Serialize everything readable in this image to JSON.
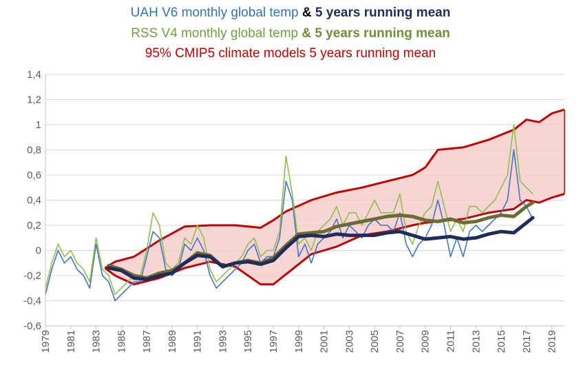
{
  "titles": {
    "uah": {
      "text_a": "UAH V6 monthly global temp",
      "amp": " & ",
      "text_b": " 5 years running mean",
      "color_a": "#2E75B6",
      "color_amp": "#000000",
      "color_b": "#1F2D5A"
    },
    "rss": {
      "text_a": "RSS V4 monthly global temp",
      "text_b": " & 5 years running mean",
      "color_a": "#70A044",
      "color_b": "#6F8F3A"
    },
    "cmip": {
      "text": "95% CMIP5 climate models 5 years running mean",
      "color": "#C00000"
    }
  },
  "chart_data": {
    "type": "line",
    "x_range": [
      1979,
      2020
    ],
    "ylim": [
      -0.6,
      1.4
    ],
    "y_ticks": [
      "-0,6",
      "-0,4",
      "-0,2",
      "0",
      "0,2",
      "0,4",
      "0,6",
      "0,8",
      "1",
      "1,2",
      "1,4"
    ],
    "y_tick_values": [
      -0.6,
      -0.4,
      -0.2,
      0,
      0.2,
      0.4,
      0.6,
      0.8,
      1.0,
      1.2,
      1.4
    ],
    "x_ticks": [
      "1979",
      "1981",
      "1983",
      "1985",
      "1987",
      "1989",
      "1991",
      "1993",
      "1995",
      "1997",
      "1999",
      "2001",
      "2003",
      "2005",
      "2007",
      "2009",
      "2011",
      "2013",
      "2015",
      "2017",
      "2019"
    ],
    "x_tick_values": [
      1979,
      1981,
      1983,
      1985,
      1987,
      1989,
      1991,
      1993,
      1995,
      1997,
      1999,
      2001,
      2003,
      2005,
      2007,
      2009,
      2011,
      2013,
      2015,
      2017,
      2019
    ],
    "grid": "horizontal",
    "colors": {
      "uah": "#4472C4",
      "uah_mean": "#1F2D5A",
      "rss": "#8DBF4B",
      "rss_mean": "#6B6B34",
      "cmip_line": "#C00000",
      "cmip_fill": "#F4C7C7"
    },
    "series": [
      {
        "name": "UAH V6 monthly global temp",
        "key": "uah",
        "x": [
          1979.0,
          1979.5,
          1980.0,
          1980.5,
          1981.0,
          1981.5,
          1982.0,
          1982.5,
          1983.0,
          1983.5,
          1984.0,
          1984.5,
          1985.0,
          1985.5,
          1986.0,
          1986.5,
          1987.0,
          1987.5,
          1988.0,
          1988.5,
          1989.0,
          1989.5,
          1990.0,
          1990.5,
          1991.0,
          1991.5,
          1992.0,
          1992.5,
          1993.0,
          1993.5,
          1994.0,
          1994.5,
          1995.0,
          1995.5,
          1996.0,
          1996.5,
          1997.0,
          1997.5,
          1998.0,
          1998.5,
          1999.0,
          1999.5,
          2000.0,
          2000.5,
          2001.0,
          2001.5,
          2002.0,
          2002.5,
          2003.0,
          2003.5,
          2004.0,
          2004.5,
          2005.0,
          2005.5,
          2006.0,
          2006.5,
          2007.0,
          2007.5,
          2008.0,
          2008.5,
          2009.0,
          2009.5,
          2010.0,
          2010.5,
          2011.0,
          2011.5,
          2012.0,
          2012.5,
          2013.0,
          2013.5,
          2014.0,
          2014.5,
          2015.0,
          2015.5,
          2016.0,
          2016.5,
          2017.0,
          2017.5
        ],
        "values": [
          -0.35,
          -0.15,
          0.0,
          -0.1,
          -0.05,
          -0.15,
          -0.2,
          -0.3,
          0.05,
          -0.2,
          -0.25,
          -0.4,
          -0.35,
          -0.3,
          -0.25,
          -0.25,
          -0.05,
          0.15,
          0.1,
          -0.15,
          -0.2,
          -0.15,
          0.05,
          0.0,
          0.1,
          0.0,
          -0.2,
          -0.3,
          -0.25,
          -0.2,
          -0.15,
          -0.1,
          0.0,
          0.05,
          -0.1,
          -0.05,
          -0.05,
          0.1,
          0.55,
          0.4,
          -0.05,
          0.05,
          -0.1,
          0.05,
          0.1,
          0.15,
          0.25,
          0.1,
          0.2,
          0.15,
          0.1,
          0.2,
          0.25,
          0.2,
          0.2,
          0.15,
          0.3,
          0.05,
          -0.05,
          0.05,
          0.1,
          0.2,
          0.4,
          0.2,
          -0.05,
          0.1,
          -0.05,
          0.15,
          0.2,
          0.15,
          0.2,
          0.25,
          0.3,
          0.4,
          0.8,
          0.4,
          0.35,
          0.25
        ]
      },
      {
        "name": "5 years running mean",
        "key": "uah_mean",
        "x": [
          1984.0,
          1985.0,
          1986.0,
          1987.0,
          1988.0,
          1989.0,
          1990.0,
          1991.0,
          1992.0,
          1993.0,
          1994.0,
          1995.0,
          1996.0,
          1997.0,
          1998.0,
          1999.0,
          2000.0,
          2001.0,
          2002.0,
          2003.0,
          2004.0,
          2005.0,
          2006.0,
          2007.0,
          2008.0,
          2009.0,
          2010.0,
          2011.0,
          2012.0,
          2013.0,
          2014.0,
          2015.0,
          2016.0,
          2017.0,
          2017.5
        ],
        "values": [
          -0.14,
          -0.16,
          -0.22,
          -0.23,
          -0.2,
          -0.18,
          -0.1,
          -0.04,
          -0.05,
          -0.13,
          -0.1,
          -0.09,
          -0.11,
          -0.08,
          0.02,
          0.11,
          0.12,
          0.11,
          0.13,
          0.12,
          0.12,
          0.12,
          0.14,
          0.15,
          0.12,
          0.09,
          0.1,
          0.11,
          0.09,
          0.1,
          0.13,
          0.15,
          0.14,
          0.22,
          0.26
        ]
      },
      {
        "name": "RSS V4 monthly global temp",
        "key": "rss",
        "x": [
          1979.0,
          1979.5,
          1980.0,
          1980.5,
          1981.0,
          1981.5,
          1982.0,
          1982.5,
          1983.0,
          1983.5,
          1984.0,
          1984.5,
          1985.0,
          1985.5,
          1986.0,
          1986.5,
          1987.0,
          1987.5,
          1988.0,
          1988.5,
          1989.0,
          1989.5,
          1990.0,
          1990.5,
          1991.0,
          1991.5,
          1992.0,
          1992.5,
          1993.0,
          1993.5,
          1994.0,
          1994.5,
          1995.0,
          1995.5,
          1996.0,
          1996.5,
          1997.0,
          1997.5,
          1998.0,
          1998.5,
          1999.0,
          1999.5,
          2000.0,
          2000.5,
          2001.0,
          2001.5,
          2002.0,
          2002.5,
          2003.0,
          2003.5,
          2004.0,
          2004.5,
          2005.0,
          2005.5,
          2006.0,
          2006.5,
          2007.0,
          2007.5,
          2008.0,
          2008.5,
          2009.0,
          2009.5,
          2010.0,
          2010.5,
          2011.0,
          2011.5,
          2012.0,
          2012.5,
          2013.0,
          2013.5,
          2014.0,
          2014.5,
          2015.0,
          2015.5,
          2016.0,
          2016.5,
          2017.0,
          2017.5
        ],
        "values": [
          -0.3,
          -0.1,
          0.05,
          -0.05,
          0.0,
          -0.1,
          -0.15,
          -0.25,
          0.1,
          -0.15,
          -0.2,
          -0.35,
          -0.3,
          -0.25,
          -0.2,
          -0.2,
          0.0,
          0.3,
          0.2,
          -0.1,
          -0.15,
          -0.1,
          0.1,
          0.05,
          0.2,
          0.1,
          -0.15,
          -0.25,
          -0.2,
          -0.15,
          -0.1,
          -0.05,
          0.05,
          0.1,
          -0.05,
          0.0,
          0.0,
          0.15,
          0.75,
          0.45,
          0.05,
          0.1,
          0.0,
          0.15,
          0.2,
          0.25,
          0.35,
          0.2,
          0.3,
          0.3,
          0.2,
          0.3,
          0.4,
          0.3,
          0.3,
          0.3,
          0.45,
          0.15,
          0.05,
          0.2,
          0.3,
          0.35,
          0.55,
          0.35,
          0.15,
          0.25,
          0.15,
          0.35,
          0.35,
          0.3,
          0.35,
          0.4,
          0.5,
          0.6,
          1.0,
          0.55,
          0.5,
          0.45
        ]
      },
      {
        "name": "5 years running mean",
        "key": "rss_mean",
        "x": [
          1984.0,
          1985.0,
          1986.0,
          1987.0,
          1988.0,
          1989.0,
          1990.0,
          1991.0,
          1992.0,
          1993.0,
          1994.0,
          1995.0,
          1996.0,
          1997.0,
          1998.0,
          1999.0,
          2000.0,
          2001.0,
          2002.0,
          2003.0,
          2004.0,
          2005.0,
          2006.0,
          2007.0,
          2008.0,
          2009.0,
          2010.0,
          2011.0,
          2012.0,
          2013.0,
          2014.0,
          2015.0,
          2016.0,
          2017.0,
          2017.5
        ],
        "values": [
          -0.12,
          -0.15,
          -0.2,
          -0.22,
          -0.18,
          -0.16,
          -0.1,
          -0.02,
          -0.04,
          -0.13,
          -0.1,
          -0.08,
          -0.1,
          -0.06,
          0.04,
          0.13,
          0.14,
          0.15,
          0.19,
          0.21,
          0.23,
          0.25,
          0.27,
          0.28,
          0.27,
          0.24,
          0.23,
          0.25,
          0.22,
          0.23,
          0.26,
          0.28,
          0.27,
          0.35,
          0.38
        ]
      },
      {
        "name": "95% CMIP5 climate models 5 years running mean",
        "key": "cmip",
        "x": [
          1983.7,
          1984.5,
          1986.0,
          1988.0,
          1990.0,
          1992.0,
          1994.0,
          1996.0,
          1997.0,
          1998.0,
          2000.0,
          2002.0,
          2004.0,
          2006.0,
          2008.0,
          2009.0,
          2010.0,
          2012.0,
          2014.0,
          2016.0,
          2017.0,
          2018.0,
          2019.0,
          2020.0
        ],
        "upper": [
          -0.14,
          -0.09,
          -0.05,
          0.08,
          0.19,
          0.2,
          0.2,
          0.18,
          0.24,
          0.31,
          0.4,
          0.46,
          0.5,
          0.55,
          0.6,
          0.66,
          0.8,
          0.82,
          0.88,
          0.96,
          1.04,
          1.02,
          1.09,
          1.12
        ],
        "lower": [
          -0.14,
          -0.2,
          -0.27,
          -0.22,
          -0.14,
          -0.09,
          -0.13,
          -0.27,
          -0.27,
          -0.19,
          -0.03,
          0.03,
          0.12,
          0.15,
          0.2,
          0.22,
          0.23,
          0.25,
          0.3,
          0.33,
          0.4,
          0.38,
          0.42,
          0.45
        ]
      }
    ]
  }
}
